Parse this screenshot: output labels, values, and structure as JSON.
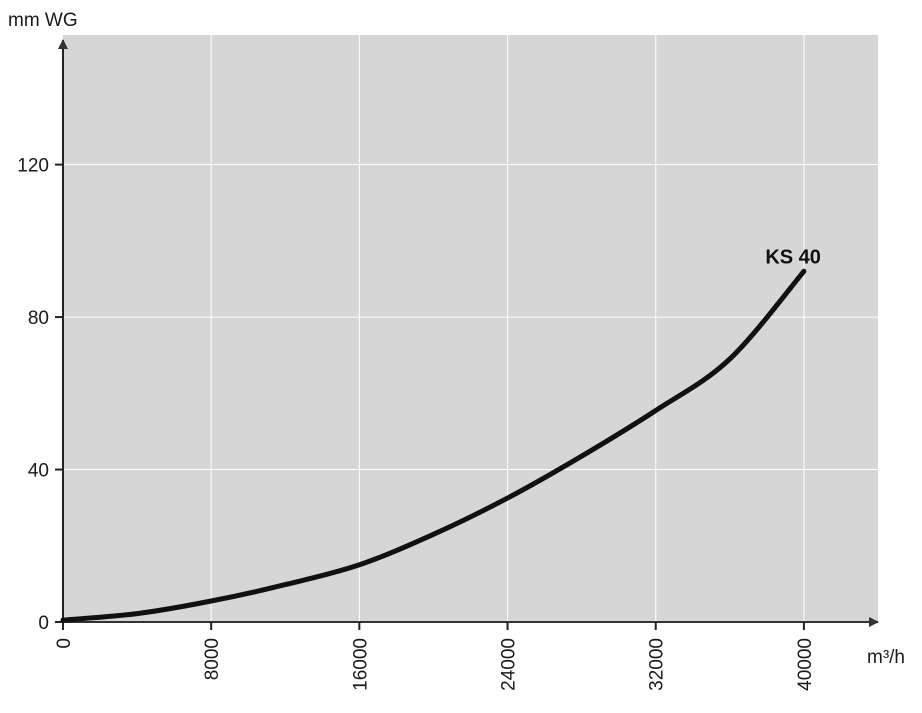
{
  "chart_data": {
    "type": "line",
    "title": "",
    "xlabel": "m³/h",
    "ylabel": "mm WG",
    "xlim": [
      0,
      44000
    ],
    "ylim": [
      0,
      154
    ],
    "x_ticks": [
      0,
      8000,
      16000,
      24000,
      32000,
      40000
    ],
    "x_tick_labels": [
      "0",
      "8000",
      "16000",
      "24000",
      "32000",
      "40000"
    ],
    "y_ticks": [
      0,
      40,
      80,
      120
    ],
    "y_tick_labels": [
      "0",
      "40",
      "80",
      "120"
    ],
    "grid": true,
    "series": [
      {
        "name": "KS 40",
        "x": [
          0,
          4000,
          8000,
          12000,
          16000,
          20000,
          24000,
          28000,
          32000,
          36000,
          40000
        ],
        "y": [
          0.5,
          2.2,
          5.5,
          9.8,
          15,
          23,
          32.5,
          43.5,
          55.5,
          69,
          92
        ]
      }
    ]
  },
  "colors": {
    "plot_background": "#d6d6d6",
    "grid": "#ffffff",
    "axis": "#222222",
    "curve": "#111111"
  }
}
